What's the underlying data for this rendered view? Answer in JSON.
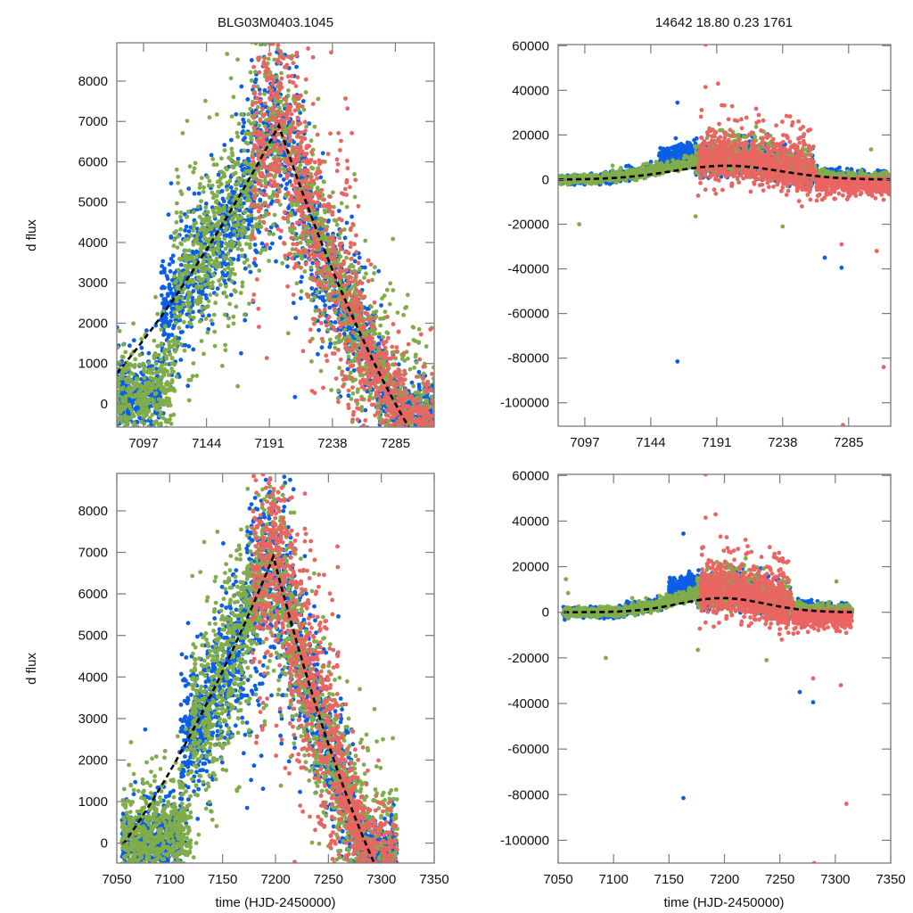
{
  "figure": {
    "title_left": "BLG03M0403.1045",
    "title_right": "14642  18.80  0.23  1761",
    "colors": {
      "blue": "#0b5fe6",
      "green": "#80ad4a",
      "red": "#ea6461",
      "model": "#000000",
      "axis": "#7a7a7a"
    }
  },
  "chart_data": [
    {
      "id": "top-left",
      "type": "scatter",
      "title": "BLG03M0403.1045",
      "xlabel": "",
      "ylabel": "d flux",
      "xlim": [
        7077,
        7314
      ],
      "ylim": [
        -575,
        8950
      ],
      "xticks": [
        7097,
        7144,
        7191,
        7238,
        7285
      ],
      "xtick_labels": [
        "7097",
        "7144",
        "7191",
        "7238",
        "7285"
      ],
      "yticks": [
        0,
        1000,
        2000,
        3000,
        4000,
        5000,
        6000,
        7000,
        8000
      ],
      "ytick_labels": [
        "0",
        "1000",
        "2000",
        "3000",
        "4000",
        "5000",
        "6000",
        "7000",
        "8000"
      ],
      "grid": false,
      "legend": "none",
      "view": "zoom",
      "series": [
        {
          "name": "blue",
          "color_key": "blue"
        },
        {
          "name": "green",
          "color_key": "green"
        },
        {
          "name": "red",
          "color_key": "red"
        },
        {
          "name": "model",
          "color_key": "model",
          "style": "dashed"
        }
      ]
    },
    {
      "id": "top-right",
      "type": "scatter",
      "title": "14642  18.80  0.23  1761",
      "xlabel": "",
      "ylabel": "",
      "xlim": [
        7078,
        7315
      ],
      "ylim": [
        -110500,
        60500
      ],
      "xticks": [
        7097,
        7144,
        7191,
        7238,
        7285
      ],
      "xtick_labels": [
        "7097",
        "7144",
        "7191",
        "7238",
        "7285"
      ],
      "yticks": [
        -100000,
        -80000,
        -60000,
        -40000,
        -20000,
        0,
        20000,
        40000,
        60000
      ],
      "ytick_labels": [
        "-100000",
        "-80000",
        "-60000",
        "-40000",
        "-20000",
        "0",
        "20000",
        "40000",
        "60000"
      ],
      "grid": false,
      "legend": "none",
      "view": "full"
    },
    {
      "id": "bottom-left",
      "type": "scatter",
      "title": "",
      "xlabel": "time (HJD-2450000)",
      "ylabel": "d flux",
      "xlim": [
        7050,
        7350
      ],
      "ylim": [
        -480,
        8900
      ],
      "xticks": [
        7050,
        7100,
        7150,
        7200,
        7250,
        7300,
        7350
      ],
      "xtick_labels": [
        "7050",
        "7100",
        "7150",
        "7200",
        "7250",
        "7300",
        "7350"
      ],
      "yticks": [
        0,
        1000,
        2000,
        3000,
        4000,
        5000,
        6000,
        7000,
        8000
      ],
      "ytick_labels": [
        "0",
        "1000",
        "2000",
        "3000",
        "4000",
        "5000",
        "6000",
        "7000",
        "8000"
      ],
      "grid": false,
      "legend": "none",
      "view": "zoom"
    },
    {
      "id": "bottom-right",
      "type": "scatter",
      "title": "",
      "xlabel": "time (HJD-2450000)",
      "ylabel": "",
      "xlim": [
        7050,
        7350
      ],
      "ylim": [
        -110000,
        60500
      ],
      "xticks": [
        7050,
        7100,
        7150,
        7200,
        7250,
        7300,
        7350
      ],
      "xtick_labels": [
        "7050",
        "7100",
        "7150",
        "7200",
        "7250",
        "7300",
        "7350"
      ],
      "yticks": [
        -100000,
        -80000,
        -60000,
        -40000,
        -20000,
        0,
        20000,
        40000,
        60000
      ],
      "ytick_labels": [
        "-100000",
        "-80000",
        "-60000",
        "-40000",
        "-20000",
        "0",
        "20000",
        "40000",
        "60000"
      ],
      "grid": false,
      "legend": "none",
      "view": "full"
    }
  ],
  "model": {
    "type": "line",
    "style": "dashed",
    "t0": 7198,
    "peak_flux": 6900,
    "rise_slope_per_day": 62,
    "fall_slope_per_day": 98,
    "baseline": 0
  },
  "observations": {
    "description": "Three-telescope difference-flux light curve; data clusters per series",
    "data_span": [
      7055,
      7315
    ],
    "blue": {
      "segments": [
        {
          "t": [
            7055,
            7110
          ],
          "flux_rel": 0.12,
          "scatter": 500
        },
        {
          "t": [
            7110,
            7170
          ],
          "flux_rel": 0.95,
          "scatter": 900
        },
        {
          "t": [
            7170,
            7215
          ],
          "flux_rel": 1.0,
          "scatter": 1500
        },
        {
          "t": [
            7215,
            7275
          ],
          "flux_rel": 0.95,
          "scatter": 900
        },
        {
          "t": [
            7275,
            7315
          ],
          "flux_rel": 0.3,
          "scatter": 400
        }
      ],
      "outliers": [
        {
          "t": 7163,
          "flux": -81500
        },
        {
          "t": 7268,
          "flux": -35000
        },
        {
          "t": 7280,
          "flux": -39500
        },
        {
          "t": 7163,
          "flux": 34500
        }
      ]
    },
    "green": {
      "segments": [
        {
          "t": [
            7055,
            7120
          ],
          "flux_rel": 0.15,
          "scatter": 700
        },
        {
          "t": [
            7120,
            7215
          ],
          "flux_rel": 1.0,
          "scatter": 1300
        },
        {
          "t": [
            7215,
            7315
          ],
          "flux_rel": 0.95,
          "scatter": 1100
        }
      ],
      "outliers": [
        {
          "t": 7057,
          "flux": 14500
        },
        {
          "t": 7093,
          "flux": -20000
        },
        {
          "t": 7176,
          "flux": -16500
        },
        {
          "t": 7238,
          "flux": -21000
        },
        {
          "t": 7301,
          "flux": 13500
        },
        {
          "t": 7059,
          "flux": 8400
        }
      ]
    },
    "red": {
      "segments": [
        {
          "t": [
            7178,
            7260
          ],
          "flux_rel": 1.05,
          "scatter": 1600
        },
        {
          "t": [
            7260,
            7315
          ],
          "flux_rel": 0.9,
          "scatter": 700
        }
      ],
      "outliers": [
        {
          "t": 7183,
          "flux": 60500
        },
        {
          "t": 7183,
          "flux": 41500
        },
        {
          "t": 7192,
          "flux": 43000
        },
        {
          "t": 7280,
          "flux": -29000
        },
        {
          "t": 7281,
          "flux": -110000
        },
        {
          "t": 7310,
          "flux": -84000
        },
        {
          "t": 7305,
          "flux": -32000
        }
      ]
    }
  }
}
